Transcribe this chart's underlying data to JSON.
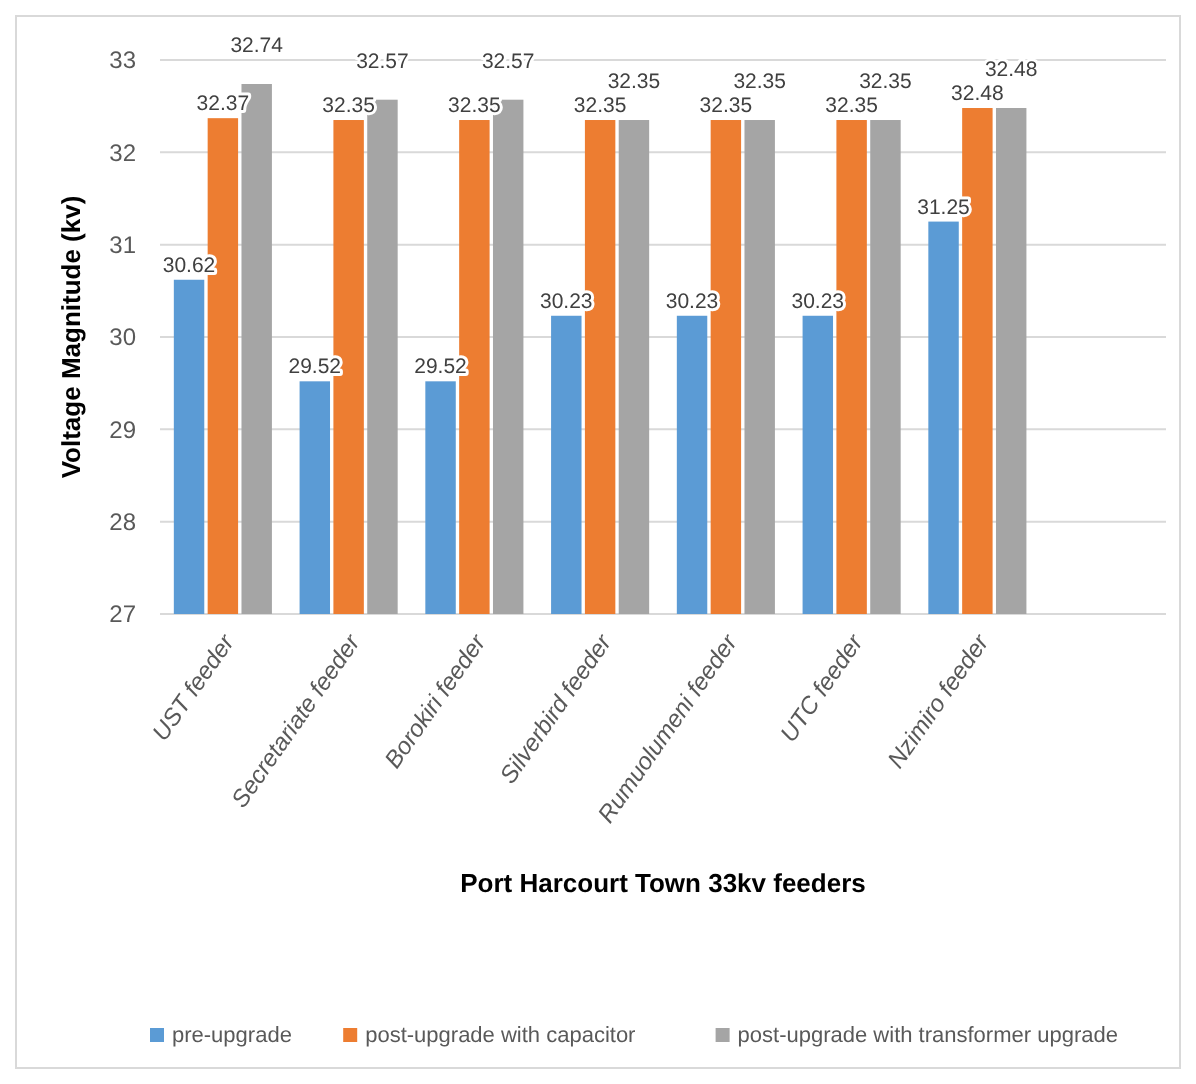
{
  "chart_data": {
    "type": "bar",
    "xlabel": "Port Harcourt Town 33kv feeders",
    "ylabel": "Voltage Magnitude (kv)",
    "categories": [
      "UST feeder",
      "Secretariate feeder",
      "Borokiri feeder",
      "Silverbird feeder",
      "Rumuolumeni feeder",
      "UTC feeder",
      "Nzimiro feeder",
      null
    ],
    "series": [
      {
        "name": "pre-upgrade",
        "color": "#5b9bd5",
        "values": [
          30.62,
          29.52,
          29.52,
          30.23,
          30.23,
          30.23,
          31.25,
          null
        ]
      },
      {
        "name": "post-upgrade with capacitor",
        "color": "#ed7d31",
        "values": [
          32.37,
          32.35,
          32.35,
          32.35,
          32.35,
          32.35,
          32.48,
          null
        ]
      },
      {
        "name": "post-upgrade with transformer upgrade",
        "color": "#a5a5a5",
        "values": [
          32.74,
          32.57,
          32.57,
          32.35,
          32.35,
          32.35,
          32.48,
          null
        ]
      }
    ],
    "ylim": [
      27,
      33
    ],
    "yticks": [
      27,
      28,
      29,
      30,
      31,
      32,
      33
    ],
    "grid": "y",
    "data_labels": true,
    "legend": "bottom"
  }
}
